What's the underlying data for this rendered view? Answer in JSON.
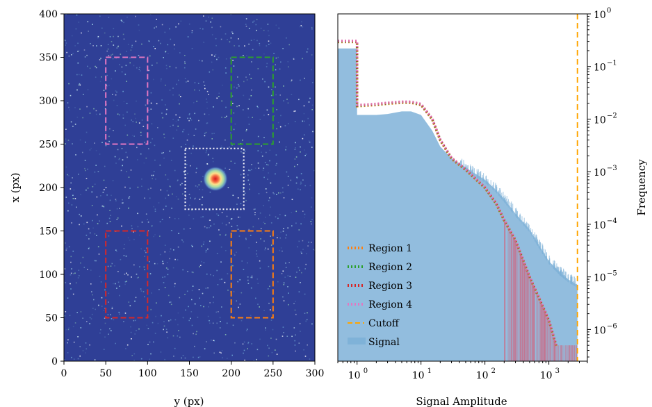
{
  "chart_data": [
    {
      "type": "heatmap",
      "xlabel": "y (px)",
      "ylabel": "x (px)",
      "xlim": [
        0,
        300
      ],
      "ylim": [
        0,
        400
      ],
      "xticks": [
        0,
        50,
        100,
        150,
        200,
        250,
        300
      ],
      "yticks": [
        0,
        50,
        100,
        150,
        200,
        250,
        300,
        350,
        400
      ],
      "background_color": "#2f3f96",
      "bright_source": {
        "y": 181,
        "x": 210
      },
      "regions": [
        {
          "name": "Region 4",
          "y_range": [
            50,
            100
          ],
          "x_range": [
            250,
            350
          ],
          "color": "#e377c2",
          "style": "dashed"
        },
        {
          "name": "Region 2",
          "y_range": [
            200,
            250
          ],
          "x_range": [
            250,
            350
          ],
          "color": "#2ca02c",
          "style": "dashed"
        },
        {
          "name": "Region 3",
          "y_range": [
            50,
            100
          ],
          "x_range": [
            50,
            150
          ],
          "color": "#d62728",
          "style": "dashed"
        },
        {
          "name": "Region 1",
          "y_range": [
            200,
            250
          ],
          "x_range": [
            50,
            150
          ],
          "color": "#ff7f0e",
          "style": "dashed"
        },
        {
          "name": "source",
          "y_range": [
            145,
            215
          ],
          "x_range": [
            175,
            245
          ],
          "color": "#ffffff",
          "style": "dotted"
        }
      ]
    },
    {
      "type": "histogram",
      "xlabel": "Signal Amplitude",
      "ylabel": "Frequency",
      "xscale": "log",
      "yscale": "log",
      "xlim": [
        0.5,
        4000
      ],
      "ylim": [
        2.5e-07,
        1
      ],
      "xticks": [
        {
          "value": 1,
          "label": "10",
          "exp": "0"
        },
        {
          "value": 10,
          "label": "10",
          "exp": "1"
        },
        {
          "value": 100,
          "label": "10",
          "exp": "2"
        },
        {
          "value": 1000,
          "label": "10",
          "exp": "3"
        }
      ],
      "yticks": [
        {
          "value": 1,
          "label": "10",
          "exp": "0"
        },
        {
          "value": 0.1,
          "label": "10",
          "exp": "−1"
        },
        {
          "value": 0.01,
          "label": "10",
          "exp": "−2"
        },
        {
          "value": 0.001,
          "label": "10",
          "exp": "−3"
        },
        {
          "value": 0.0001,
          "label": "10",
          "exp": "−4"
        },
        {
          "value": 1e-05,
          "label": "10",
          "exp": "−5"
        },
        {
          "value": 1e-06,
          "label": "10",
          "exp": "−6"
        }
      ],
      "signal": {
        "name": "Signal",
        "color": "#7fb2d8",
        "x": [
          0.5,
          1.0,
          1.0,
          2,
          3,
          5,
          7,
          10,
          15,
          20,
          30,
          50,
          100,
          150,
          200,
          300,
          500,
          700,
          1000,
          1500,
          2000,
          2800
        ],
        "y": [
          0.22,
          0.22,
          0.012,
          0.012,
          0.0125,
          0.014,
          0.014,
          0.012,
          0.006,
          0.003,
          0.0018,
          0.0012,
          0.0007,
          0.00045,
          0.0003,
          0.00016,
          8e-05,
          4e-05,
          2e-05,
          1.2e-05,
          9e-06,
          7e-06
        ]
      },
      "regions": [
        {
          "name": "Region 1",
          "color": "#ff7f0e"
        },
        {
          "name": "Region 2",
          "color": "#2ca02c"
        },
        {
          "name": "Region 3",
          "color": "#d62728"
        },
        {
          "name": "Region 4",
          "color": "#e377c2"
        }
      ],
      "region_curve": {
        "x": [
          0.5,
          1.0,
          1.0,
          2,
          3,
          5,
          7,
          10,
          15,
          20,
          30,
          50,
          100,
          150,
          200,
          300,
          500,
          700,
          1000,
          1300
        ],
        "y": [
          0.3,
          0.3,
          0.018,
          0.019,
          0.02,
          0.021,
          0.021,
          0.019,
          0.01,
          0.004,
          0.0018,
          0.0011,
          0.0005,
          0.00025,
          0.00012,
          5e-05,
          1e-05,
          4e-06,
          1.5e-06,
          5e-07
        ]
      },
      "cutoff": {
        "name": "Cutoff",
        "x": 2800,
        "color": "#ffa500"
      },
      "legend": [
        "Region 1",
        "Region 2",
        "Region 3",
        "Region 4",
        "Cutoff",
        "Signal"
      ],
      "legend_position": "lower-left"
    }
  ]
}
